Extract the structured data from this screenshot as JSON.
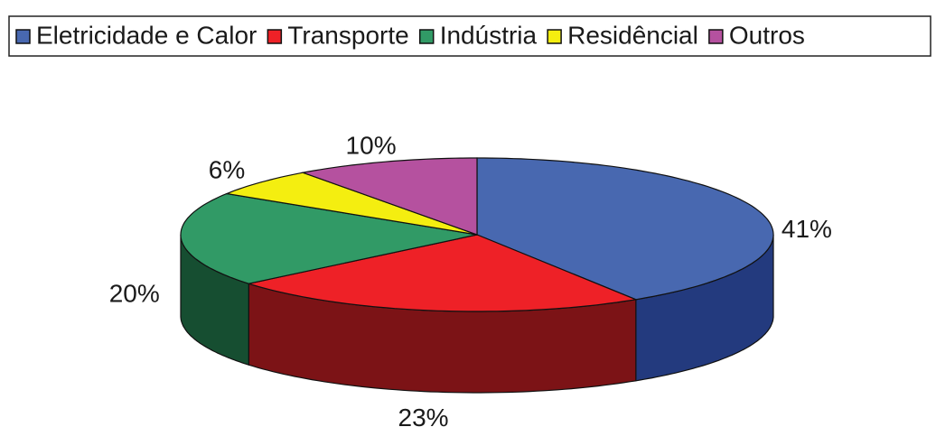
{
  "chart_data": {
    "type": "pie3d",
    "categories": [
      "Eletricidade e Calor",
      "Transporte",
      "Indústria",
      "Residêncial",
      "Outros"
    ],
    "values": [
      41,
      23,
      20,
      6,
      10
    ],
    "value_labels": [
      "41%",
      "23%",
      "20%",
      "6%",
      "10%"
    ],
    "colors": [
      "#4868b0",
      "#ee2127",
      "#319a66",
      "#f4ee10",
      "#b5519f"
    ],
    "side_colors": [
      "#233a7e",
      "#7c1316",
      "#164e31",
      "#7a7600",
      "#5a2850"
    ],
    "legend": "top"
  }
}
